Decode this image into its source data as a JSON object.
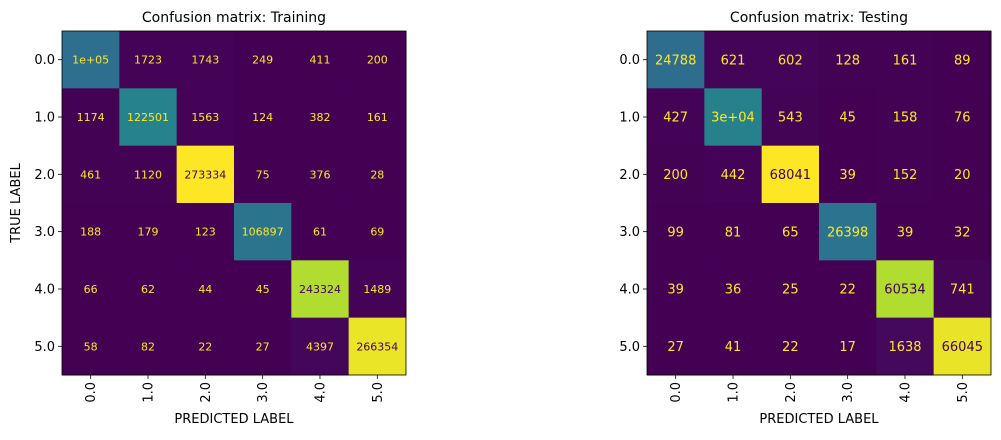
{
  "chart_data": [
    {
      "type": "heatmap",
      "title": "Confusion matrix: Training",
      "xlabel": "PREDICTED LABEL",
      "ylabel": "TRUE LABEL",
      "x_tick_labels": [
        "0.0",
        "1.0",
        "2.0",
        "3.0",
        "4.0",
        "5.0"
      ],
      "y_tick_labels": [
        "0.0",
        "1.0",
        "2.0",
        "3.0",
        "4.0",
        "5.0"
      ],
      "colormap": "viridis",
      "values": [
        [
          100000,
          1723,
          1743,
          249,
          411,
          200
        ],
        [
          1174,
          122501,
          1563,
          124,
          382,
          161
        ],
        [
          461,
          1120,
          273334,
          75,
          376,
          28
        ],
        [
          188,
          179,
          123,
          106897,
          61,
          69
        ],
        [
          66,
          62,
          44,
          45,
          243324,
          1489
        ],
        [
          58,
          82,
          22,
          27,
          4397,
          266354
        ]
      ],
      "cell_labels": [
        [
          "1e+05",
          "1723",
          "1743",
          "249",
          "411",
          "200"
        ],
        [
          "1174",
          "122501",
          "1563",
          "124",
          "382",
          "161"
        ],
        [
          "461",
          "1120",
          "273334",
          "75",
          "376",
          "28"
        ],
        [
          "188",
          "179",
          "123",
          "106897",
          "61",
          "69"
        ],
        [
          "66",
          "62",
          "44",
          "45",
          "243324",
          "1489"
        ],
        [
          "58",
          "82",
          "22",
          "27",
          "4397",
          "266354"
        ]
      ]
    },
    {
      "type": "heatmap",
      "title": "Confusion matrix: Testing",
      "xlabel": "PREDICTED LABEL",
      "ylabel": "",
      "x_tick_labels": [
        "0.0",
        "1.0",
        "2.0",
        "3.0",
        "4.0",
        "5.0"
      ],
      "y_tick_labels": [
        "0.0",
        "1.0",
        "2.0",
        "3.0",
        "4.0",
        "5.0"
      ],
      "colormap": "viridis",
      "values": [
        [
          24788,
          621,
          602,
          128,
          161,
          89
        ],
        [
          427,
          30000,
          543,
          45,
          158,
          76
        ],
        [
          200,
          442,
          68041,
          39,
          152,
          20
        ],
        [
          99,
          81,
          65,
          26398,
          39,
          32
        ],
        [
          39,
          36,
          25,
          22,
          60534,
          741
        ],
        [
          27,
          41,
          22,
          17,
          1638,
          66045
        ]
      ],
      "cell_labels": [
        [
          "24788",
          "621",
          "602",
          "128",
          "161",
          "89"
        ],
        [
          "427",
          "3e+04",
          "543",
          "45",
          "158",
          "76"
        ],
        [
          "200",
          "442",
          "68041",
          "39",
          "152",
          "20"
        ],
        [
          "99",
          "81",
          "65",
          "26398",
          "39",
          "32"
        ],
        [
          "39",
          "36",
          "25",
          "22",
          "60534",
          "741"
        ],
        [
          "27",
          "41",
          "22",
          "17",
          "1638",
          "66045"
        ]
      ]
    }
  ]
}
